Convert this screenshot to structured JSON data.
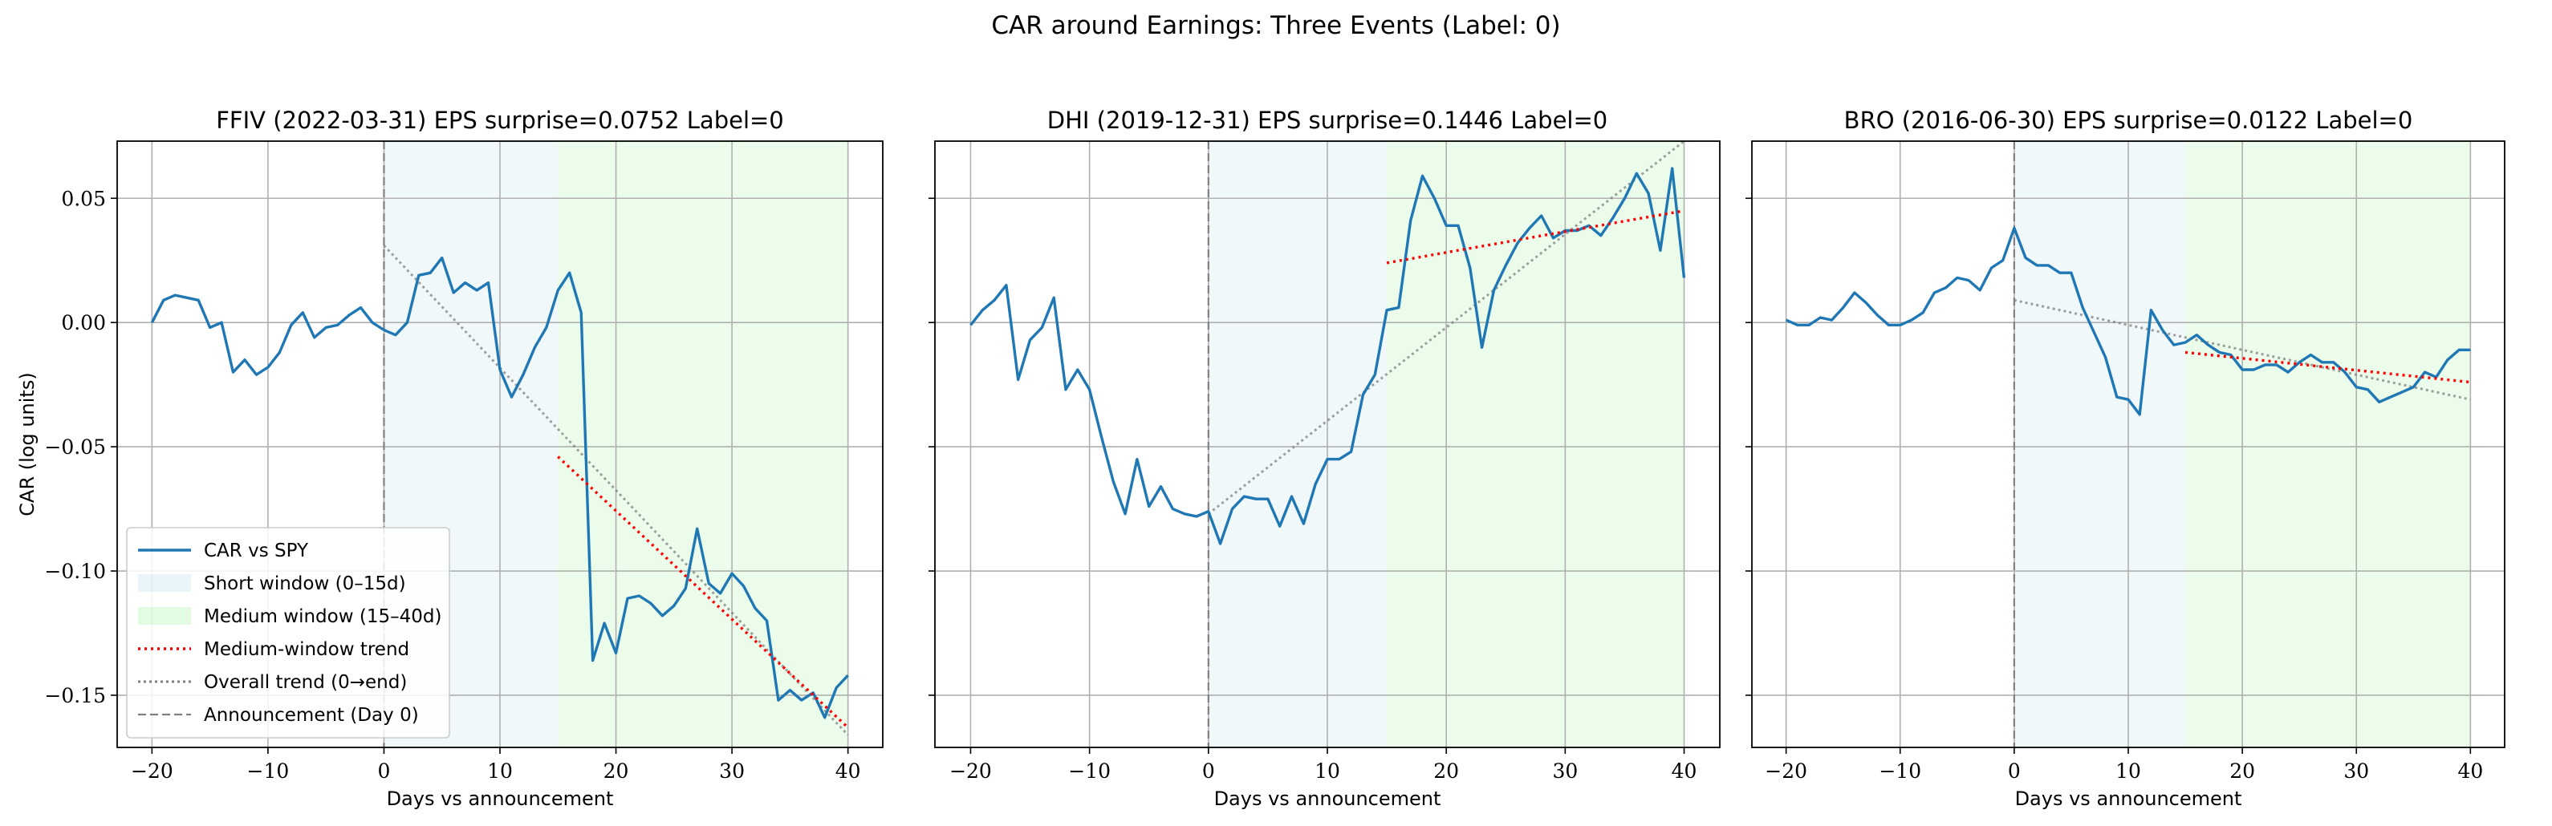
{
  "figure": {
    "suptitle": "CAR around Earnings: Three Events (Label: 0)"
  },
  "colors": {
    "car": "#1f77b4",
    "short_window": "#add8e6",
    "medium_window": "#90ee90",
    "medium_trend": "#ff0000",
    "overall_trend": "#808080",
    "announcement": "#808080",
    "grid": "#b0b0b0"
  },
  "chart_data": [
    {
      "type": "line",
      "title": "FFIV (2022-03-31) EPS surprise=0.0752 Label=0",
      "xlabel": "Days vs announcement",
      "ylabel": "CAR (log units)",
      "xlim": [
        -23,
        43
      ],
      "ylim": [
        -0.171,
        0.073
      ],
      "xticks": [
        -20,
        -10,
        0,
        10,
        20,
        30,
        40
      ],
      "xtick_labels": [
        "−20",
        "−10",
        "0",
        "10",
        "20",
        "30",
        "40"
      ],
      "yticks": [
        0.05,
        0.0,
        -0.05,
        -0.1,
        -0.15
      ],
      "ytick_labels": [
        "0.05",
        "0.00",
        "−0.05",
        "−0.10",
        "−0.15"
      ],
      "show_ytick_labels": true,
      "grid": true,
      "short_window": [
        0,
        15
      ],
      "medium_window": [
        15,
        40
      ],
      "announcement_day": 0,
      "x": [
        -20,
        -19,
        -18,
        -17,
        -16,
        -15,
        -14,
        -13,
        -12,
        -11,
        -10,
        -9,
        -8,
        -7,
        -6,
        -5,
        -4,
        -3,
        -2,
        -1,
        0,
        1,
        2,
        3,
        4,
        5,
        6,
        7,
        8,
        9,
        10,
        11,
        12,
        13,
        14,
        15,
        16,
        17,
        18,
        19,
        20,
        21,
        22,
        23,
        24,
        25,
        26,
        27,
        28,
        29,
        30,
        31,
        32,
        33,
        34,
        35,
        36,
        37,
        38,
        39,
        40
      ],
      "car": [
        0.0,
        0.009,
        0.011,
        0.01,
        0.009,
        -0.002,
        0.0,
        -0.02,
        -0.015,
        -0.021,
        -0.018,
        -0.012,
        -0.001,
        0.004,
        -0.006,
        -0.002,
        -0.001,
        0.003,
        0.006,
        0.0,
        -0.003,
        -0.005,
        0.0,
        0.019,
        0.02,
        0.026,
        0.012,
        0.016,
        0.013,
        0.016,
        -0.019,
        -0.03,
        -0.021,
        -0.01,
        -0.002,
        0.013,
        0.02,
        0.004,
        -0.136,
        -0.121,
        -0.133,
        -0.111,
        -0.11,
        -0.113,
        -0.118,
        -0.114,
        -0.107,
        -0.083,
        -0.105,
        -0.109,
        -0.101,
        -0.106,
        -0.115,
        -0.12,
        -0.152,
        -0.148,
        -0.152,
        -0.149,
        -0.159,
        -0.147,
        -0.142
      ],
      "medium_trend": {
        "x": [
          15,
          40
        ],
        "y": [
          -0.054,
          -0.163
        ]
      },
      "overall_trend": {
        "x": [
          0,
          40
        ],
        "y": [
          0.031,
          -0.166
        ]
      },
      "legend": {
        "position": "lower-left",
        "entries": [
          {
            "label": "CAR vs SPY",
            "kind": "line"
          },
          {
            "label": "Short window (0–15d)",
            "kind": "patch-short"
          },
          {
            "label": "Medium window (15–40d)",
            "kind": "patch-medium"
          },
          {
            "label": "Medium-window trend",
            "kind": "dotted-red"
          },
          {
            "label": "Overall trend (0→end)",
            "kind": "dotted-gray"
          },
          {
            "label": "Announcement (Day 0)",
            "kind": "dashed-gray"
          }
        ]
      }
    },
    {
      "type": "line",
      "title": "DHI (2019-12-31) EPS surprise=0.1446 Label=0",
      "xlabel": "Days vs announcement",
      "ylabel": "",
      "xlim": [
        -23,
        43
      ],
      "ylim": [
        -0.171,
        0.073
      ],
      "xticks": [
        -20,
        -10,
        0,
        10,
        20,
        30,
        40
      ],
      "xtick_labels": [
        "−20",
        "−10",
        "0",
        "10",
        "20",
        "30",
        "40"
      ],
      "yticks": [
        0.05,
        0.0,
        -0.05,
        -0.1,
        -0.15
      ],
      "ytick_labels": [
        "",
        "",
        "",
        "",
        ""
      ],
      "show_ytick_labels": false,
      "grid": true,
      "short_window": [
        0,
        15
      ],
      "medium_window": [
        15,
        40
      ],
      "announcement_day": 0,
      "x": [
        -20,
        -19,
        -18,
        -17,
        -16,
        -15,
        -14,
        -13,
        -12,
        -11,
        -10,
        -9,
        -8,
        -7,
        -6,
        -5,
        -4,
        -3,
        -2,
        -1,
        0,
        1,
        2,
        3,
        4,
        5,
        6,
        7,
        8,
        9,
        10,
        11,
        12,
        13,
        14,
        15,
        16,
        17,
        18,
        19,
        20,
        21,
        22,
        23,
        24,
        25,
        26,
        27,
        28,
        29,
        30,
        31,
        32,
        33,
        34,
        35,
        36,
        37,
        38,
        39,
        40
      ],
      "car": [
        -0.001,
        0.005,
        0.009,
        0.015,
        -0.023,
        -0.007,
        -0.002,
        0.01,
        -0.027,
        -0.019,
        -0.027,
        -0.046,
        -0.064,
        -0.077,
        -0.055,
        -0.074,
        -0.066,
        -0.075,
        -0.077,
        -0.078,
        -0.076,
        -0.089,
        -0.075,
        -0.07,
        -0.071,
        -0.071,
        -0.082,
        -0.07,
        -0.081,
        -0.065,
        -0.055,
        -0.055,
        -0.052,
        -0.029,
        -0.021,
        0.005,
        0.006,
        0.041,
        0.059,
        0.05,
        0.039,
        0.039,
        0.022,
        -0.01,
        0.013,
        0.023,
        0.032,
        0.038,
        0.043,
        0.034,
        0.037,
        0.037,
        0.039,
        0.035,
        0.042,
        0.05,
        0.06,
        0.052,
        0.029,
        0.062,
        0.018
      ],
      "medium_trend": {
        "x": [
          15,
          40
        ],
        "y": [
          0.024,
          0.045
        ]
      },
      "overall_trend": {
        "x": [
          0,
          40
        ],
        "y": [
          -0.077,
          0.073
        ]
      }
    },
    {
      "type": "line",
      "title": "BRO (2016-06-30) EPS surprise=0.0122 Label=0",
      "xlabel": "Days vs announcement",
      "ylabel": "",
      "xlim": [
        -23,
        43
      ],
      "ylim": [
        -0.171,
        0.073
      ],
      "xticks": [
        -20,
        -10,
        0,
        10,
        20,
        30,
        40
      ],
      "xtick_labels": [
        "−20",
        "−10",
        "0",
        "10",
        "20",
        "30",
        "40"
      ],
      "yticks": [
        0.05,
        0.0,
        -0.05,
        -0.1,
        -0.15
      ],
      "ytick_labels": [
        "",
        "",
        "",
        "",
        ""
      ],
      "show_ytick_labels": false,
      "grid": true,
      "short_window": [
        0,
        15
      ],
      "medium_window": [
        15,
        40
      ],
      "announcement_day": 0,
      "x": [
        -20,
        -19,
        -18,
        -17,
        -16,
        -15,
        -14,
        -13,
        -12,
        -11,
        -10,
        -9,
        -8,
        -7,
        -6,
        -5,
        -4,
        -3,
        -2,
        -1,
        0,
        1,
        2,
        3,
        4,
        5,
        6,
        7,
        8,
        9,
        10,
        11,
        12,
        13,
        14,
        15,
        16,
        17,
        18,
        19,
        20,
        21,
        22,
        23,
        24,
        25,
        26,
        27,
        28,
        29,
        30,
        31,
        32,
        33,
        34,
        35,
        36,
        37,
        38,
        39,
        40
      ],
      "car": [
        0.001,
        -0.001,
        -0.001,
        0.002,
        0.001,
        0.006,
        0.012,
        0.008,
        0.003,
        -0.001,
        -0.001,
        0.001,
        0.004,
        0.012,
        0.014,
        0.018,
        0.017,
        0.013,
        0.022,
        0.025,
        0.038,
        0.026,
        0.023,
        0.023,
        0.02,
        0.02,
        0.006,
        -0.004,
        -0.014,
        -0.03,
        -0.031,
        -0.037,
        0.005,
        -0.003,
        -0.009,
        -0.008,
        -0.005,
        -0.009,
        -0.012,
        -0.013,
        -0.019,
        -0.019,
        -0.017,
        -0.017,
        -0.02,
        -0.016,
        -0.013,
        -0.016,
        -0.016,
        -0.02,
        -0.026,
        -0.027,
        -0.032,
        -0.03,
        -0.028,
        -0.026,
        -0.02,
        -0.022,
        -0.015,
        -0.011,
        -0.011
      ],
      "medium_trend": {
        "x": [
          15,
          40
        ],
        "y": [
          -0.012,
          -0.024
        ]
      },
      "overall_trend": {
        "x": [
          0,
          40
        ],
        "y": [
          0.009,
          -0.031
        ]
      }
    }
  ]
}
